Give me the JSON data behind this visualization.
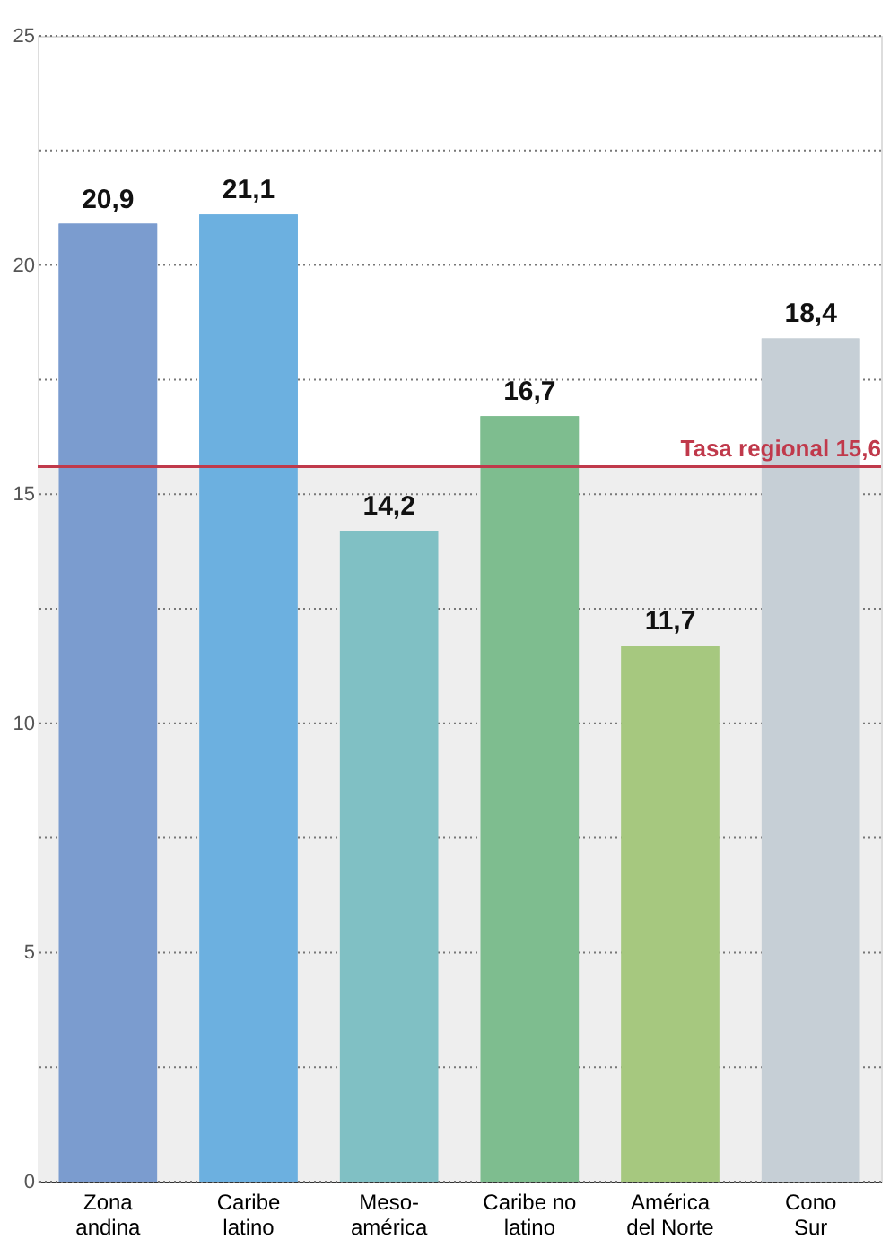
{
  "chart_data": {
    "type": "bar",
    "categories": [
      "Zona\nandina",
      "Caribe\nlatino",
      "Meso-\namérica",
      "Caribe no\nlatino",
      "América\ndel Norte",
      "Cono\nSur"
    ],
    "values": [
      20.9,
      21.1,
      14.2,
      16.7,
      11.7,
      18.4
    ],
    "colors": [
      "#7b9ccf",
      "#6cb0e0",
      "#80c0c4",
      "#7ebd8f",
      "#a6c87f",
      "#c6cfd6"
    ],
    "value_labels": [
      "20,9",
      "21,1",
      "14,2",
      "16,7",
      "11,7",
      "18,4"
    ],
    "ylim": [
      0,
      25
    ],
    "yticks": [
      0,
      {
        "value": 2.5,
        "label": null
      },
      5,
      {
        "value": 7.5,
        "label": null
      },
      10,
      {
        "value": 12.5,
        "label": null
      },
      15,
      {
        "value": 17.5,
        "label": null
      },
      20,
      {
        "value": 22.5,
        "label": null
      },
      25
    ],
    "grid": "y",
    "ref_lines": [
      {
        "axis": "y",
        "value": 15.6,
        "label": "Tasa regional 15,6",
        "color": "#c0394b"
      }
    ],
    "bands": [
      {
        "axis": "y",
        "from": 0,
        "to": 15.6,
        "color": "#eeeeee"
      }
    ]
  }
}
